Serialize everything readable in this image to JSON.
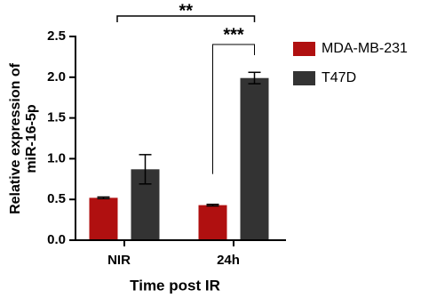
{
  "chart_data": {
    "type": "bar",
    "xlabel": "Time post IR",
    "ylabel": [
      "Relative expression of",
      "miR-16-5p"
    ],
    "categories": [
      "NIR",
      "24h"
    ],
    "series": [
      {
        "name": "MDA-MB-231",
        "color": "#b01010",
        "values": [
          0.52,
          0.43
        ],
        "errors": [
          0.01,
          0.01
        ]
      },
      {
        "name": "T47D",
        "color": "#333333",
        "values": [
          0.87,
          1.99
        ],
        "errors": [
          0.18,
          0.07
        ]
      }
    ],
    "ylim": [
      0,
      2.5
    ],
    "yticks": [
      {
        "value": 0,
        "label": "0.0"
      },
      0.5,
      {
        "value": 1,
        "label": "1.0"
      },
      1.5,
      {
        "value": 2,
        "label": "2.0"
      },
      2.5
    ],
    "annotations": [
      "**",
      "***"
    ],
    "legend": "right"
  }
}
